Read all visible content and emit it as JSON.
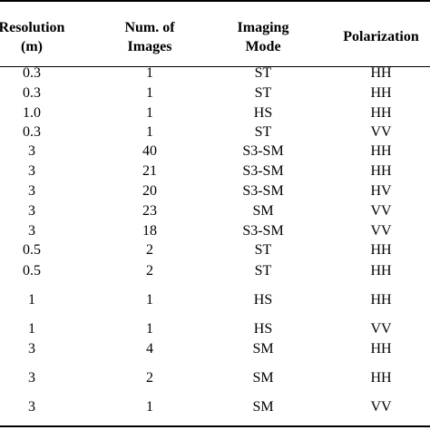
{
  "table": {
    "headers": [
      {
        "line1": "Resolution",
        "line2": "(m)"
      },
      {
        "line1": "Num. of",
        "line2": "Images"
      },
      {
        "line1": "Imaging",
        "line2": "Mode"
      },
      {
        "line1": "Polarization",
        "line2": ""
      }
    ],
    "rows": [
      [
        "0.3",
        "1",
        "ST",
        "HH"
      ],
      [
        "0.3",
        "1",
        "ST",
        "HH"
      ],
      [
        "1.0",
        "1",
        "HS",
        "HH"
      ],
      [
        "0.3",
        "1",
        "ST",
        "VV"
      ],
      [
        "3",
        "40",
        "S3-SM",
        "HH"
      ],
      [
        "3",
        "21",
        "S3-SM",
        "HH"
      ],
      [
        "3",
        "20",
        "S3-SM",
        "HV"
      ],
      [
        "3",
        "23",
        "SM",
        "VV"
      ],
      [
        "3",
        "18",
        "S3-SM",
        "VV"
      ],
      [
        "0.5",
        "2",
        "ST",
        "HH"
      ],
      [
        "0.5",
        "2",
        "ST",
        "HH"
      ],
      [
        "1",
        "1",
        "HS",
        "HH"
      ],
      [
        "1",
        "1",
        "HS",
        "VV"
      ],
      [
        "3",
        "4",
        "SM",
        "HH"
      ],
      [
        "3",
        "2",
        "SM",
        "HH"
      ],
      [
        "3",
        "1",
        "SM",
        "VV"
      ]
    ]
  }
}
